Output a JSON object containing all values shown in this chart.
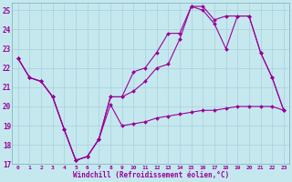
{
  "xlabel": "Windchill (Refroidissement éolien,°C)",
  "background_color": "#c5e8ef",
  "grid_color": "#aacfda",
  "line_color": "#990099",
  "xlim": [
    -0.5,
    23.5
  ],
  "ylim": [
    17,
    25.4
  ],
  "yticks": [
    17,
    18,
    19,
    20,
    21,
    22,
    23,
    24,
    25
  ],
  "xticks": [
    0,
    1,
    2,
    3,
    4,
    5,
    6,
    7,
    8,
    9,
    10,
    11,
    12,
    13,
    14,
    15,
    16,
    17,
    18,
    19,
    20,
    21,
    22,
    23
  ],
  "line1_x": [
    0,
    1,
    2,
    3,
    4,
    5,
    6,
    7,
    8,
    9,
    10,
    11,
    12,
    13,
    14,
    15,
    16,
    17,
    18,
    19,
    20,
    21,
    22,
    23
  ],
  "line1_y": [
    22.5,
    21.5,
    21.3,
    20.5,
    18.8,
    17.2,
    17.4,
    18.3,
    20.1,
    19.0,
    19.1,
    19.2,
    19.4,
    19.5,
    19.6,
    19.7,
    19.8,
    19.8,
    19.9,
    20.0,
    20.0,
    20.0,
    20.0,
    19.8
  ],
  "line2_x": [
    0,
    1,
    2,
    3,
    4,
    5,
    6,
    7,
    8,
    9,
    10,
    11,
    12,
    13,
    14,
    15,
    16,
    17,
    18,
    19,
    20,
    21,
    22,
    23
  ],
  "line2_y": [
    22.5,
    21.5,
    21.3,
    20.5,
    18.8,
    17.2,
    17.4,
    18.3,
    20.5,
    20.5,
    21.8,
    22.0,
    22.8,
    23.8,
    23.8,
    25.2,
    25.2,
    24.5,
    24.7,
    24.7,
    24.7,
    22.8,
    21.5,
    19.8
  ],
  "line3_x": [
    0,
    1,
    2,
    3,
    4,
    5,
    6,
    7,
    8,
    9,
    10,
    11,
    12,
    13,
    14,
    15,
    16,
    17,
    18,
    19,
    20,
    21,
    22,
    23
  ],
  "line3_y": [
    22.5,
    21.5,
    21.3,
    20.5,
    18.8,
    17.2,
    17.4,
    18.3,
    20.5,
    20.5,
    20.8,
    21.3,
    22.0,
    22.2,
    23.5,
    25.2,
    25.0,
    24.3,
    23.0,
    24.7,
    24.7,
    22.8,
    21.5,
    19.8
  ]
}
